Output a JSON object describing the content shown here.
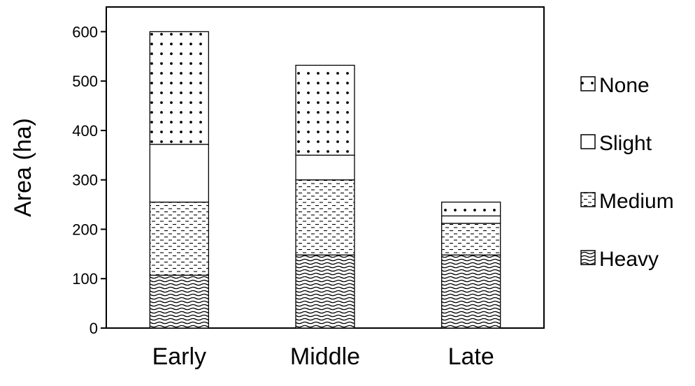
{
  "chart_data": {
    "type": "bar",
    "stacked": true,
    "title": "",
    "xlabel": "",
    "ylabel": "Area (ha)",
    "ylim": [
      0,
      650
    ],
    "yticks": [
      0,
      100,
      200,
      300,
      400,
      500,
      600
    ],
    "categories": [
      "Early",
      "Middle",
      "Late"
    ],
    "series": [
      {
        "name": "Heavy",
        "pattern": "wavy",
        "values": [
          107,
          148,
          148
        ]
      },
      {
        "name": "Medium",
        "pattern": "dashed",
        "values": [
          148,
          152,
          64
        ]
      },
      {
        "name": "Slight",
        "pattern": "blank",
        "values": [
          117,
          50,
          15
        ]
      },
      {
        "name": "None",
        "pattern": "dotted",
        "values": [
          228,
          182,
          28
        ]
      }
    ],
    "legend_order": [
      "None",
      "Slight",
      "Medium",
      "Heavy"
    ],
    "legend_position": "right",
    "grid": false
  }
}
